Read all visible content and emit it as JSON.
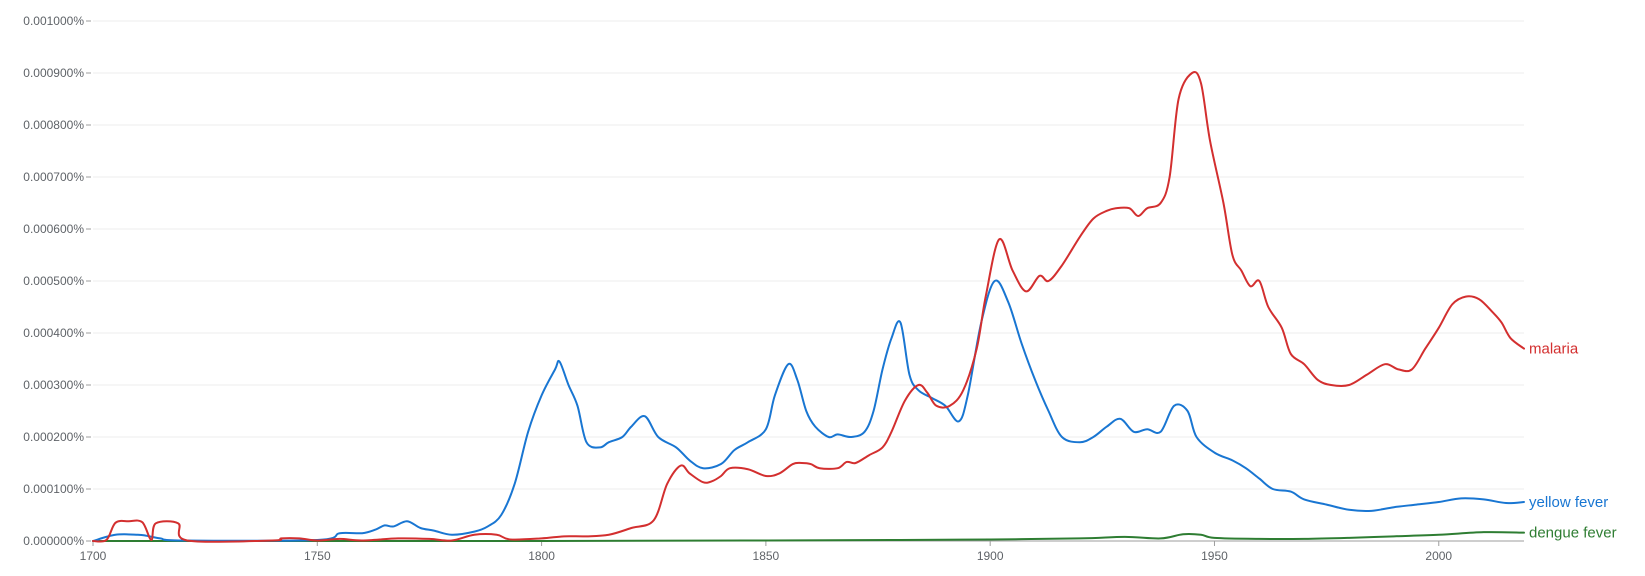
{
  "chart_data": {
    "type": "line",
    "title": "",
    "xlabel": "",
    "ylabel": "",
    "xlim": [
      1700,
      2019
    ],
    "ylim": [
      0,
      0.001
    ],
    "x_ticks": [
      1700,
      1750,
      1800,
      1850,
      1900,
      1950,
      2000
    ],
    "x_tick_labels": [
      "1700",
      "1750",
      "1800",
      "1850",
      "1900",
      "1950",
      "2000"
    ],
    "y_ticks": [
      0,
      0.0001,
      0.0002,
      0.0003,
      0.0004,
      0.0005,
      0.0006,
      0.0007,
      0.0008,
      0.0009,
      0.001
    ],
    "y_tick_labels": [
      "0.000000%",
      "0.000100%",
      "0.000200%",
      "0.000300%",
      "0.000400%",
      "0.000500%",
      "0.000600%",
      "0.000700%",
      "0.000800%",
      "0.000900%",
      "0.001000%"
    ],
    "grid": true,
    "legend": "inline-right",
    "series": [
      {
        "name": "malaria",
        "color": "#d32f2f",
        "points": [
          [
            1700,
            0
          ],
          [
            1703,
            2e-06
          ],
          [
            1705,
            3.5e-05
          ],
          [
            1708,
            3.8e-05
          ],
          [
            1711,
            3.6e-05
          ],
          [
            1713,
            2e-06
          ],
          [
            1714,
            3.4e-05
          ],
          [
            1719,
            3.4e-05
          ],
          [
            1721,
            1e-06
          ],
          [
            1740,
            1e-06
          ],
          [
            1742,
            5e-06
          ],
          [
            1746,
            5e-06
          ],
          [
            1750,
            1e-06
          ],
          [
            1755,
            4e-06
          ],
          [
            1760,
            1e-06
          ],
          [
            1768,
            5e-06
          ],
          [
            1775,
            4e-06
          ],
          [
            1780,
            1e-06
          ],
          [
            1785,
            1.2e-05
          ],
          [
            1790,
            1.2e-05
          ],
          [
            1793,
            3e-06
          ],
          [
            1800,
            5e-06
          ],
          [
            1805,
            9e-06
          ],
          [
            1810,
            9e-06
          ],
          [
            1815,
            1.2e-05
          ],
          [
            1820,
            2.5e-05
          ],
          [
            1825,
            4e-05
          ],
          [
            1828,
            0.00011
          ],
          [
            1831,
            0.000145
          ],
          [
            1833,
            0.00013
          ],
          [
            1836,
            0.000113
          ],
          [
            1838,
            0.000115
          ],
          [
            1840,
            0.000125
          ],
          [
            1842,
            0.00014
          ],
          [
            1846,
            0.000138
          ],
          [
            1850,
            0.000125
          ],
          [
            1853,
            0.00013
          ],
          [
            1856,
            0.000148
          ],
          [
            1858,
            0.00015
          ],
          [
            1860,
            0.000148
          ],
          [
            1862,
            0.00014
          ],
          [
            1866,
            0.00014
          ],
          [
            1868,
            0.000152
          ],
          [
            1870,
            0.00015
          ],
          [
            1873,
            0.000165
          ],
          [
            1876,
            0.00018
          ],
          [
            1878,
            0.00021
          ],
          [
            1881,
            0.00027
          ],
          [
            1884,
            0.0003
          ],
          [
            1886,
            0.000285
          ],
          [
            1888,
            0.00026
          ],
          [
            1891,
            0.00026
          ],
          [
            1894,
            0.00029
          ],
          [
            1897,
            0.00037
          ],
          [
            1899,
            0.00047
          ],
          [
            1902,
            0.00058
          ],
          [
            1905,
            0.00052
          ],
          [
            1908,
            0.00048
          ],
          [
            1911,
            0.00051
          ],
          [
            1913,
            0.0005
          ],
          [
            1916,
            0.00053
          ],
          [
            1920,
            0.000585
          ],
          [
            1923,
            0.00062
          ],
          [
            1926,
            0.000635
          ],
          [
            1928,
            0.00064
          ],
          [
            1931,
            0.00064
          ],
          [
            1933,
            0.000625
          ],
          [
            1935,
            0.00064
          ],
          [
            1938,
            0.00065
          ],
          [
            1940,
            0.0007
          ],
          [
            1942,
            0.00085
          ],
          [
            1945,
            0.0009
          ],
          [
            1947,
            0.00088
          ],
          [
            1949,
            0.00077
          ],
          [
            1952,
            0.00065
          ],
          [
            1954,
            0.00055
          ],
          [
            1956,
            0.00052
          ],
          [
            1958,
            0.00049
          ],
          [
            1960,
            0.0005
          ],
          [
            1962,
            0.00045
          ],
          [
            1965,
            0.00041
          ],
          [
            1967,
            0.00036
          ],
          [
            1970,
            0.00034
          ],
          [
            1973,
            0.00031
          ],
          [
            1976,
            0.0003
          ],
          [
            1980,
            0.0003
          ],
          [
            1984,
            0.00032
          ],
          [
            1988,
            0.00034
          ],
          [
            1991,
            0.00033
          ],
          [
            1994,
            0.00033
          ],
          [
            1997,
            0.00037
          ],
          [
            2000,
            0.00041
          ],
          [
            2003,
            0.000455
          ],
          [
            2006,
            0.00047
          ],
          [
            2009,
            0.000465
          ],
          [
            2012,
            0.00044
          ],
          [
            2014,
            0.00042
          ],
          [
            2016,
            0.00039
          ],
          [
            2019,
            0.00037
          ]
        ]
      },
      {
        "name": "yellow fever",
        "color": "#1976d2",
        "points": [
          [
            1700,
            0
          ],
          [
            1705,
            1.2e-05
          ],
          [
            1710,
            1.2e-05
          ],
          [
            1712,
            1e-05
          ],
          [
            1715,
            5e-06
          ],
          [
            1720,
            1e-06
          ],
          [
            1750,
            2e-06
          ],
          [
            1755,
            1.5e-05
          ],
          [
            1760,
            1.5e-05
          ],
          [
            1763,
            2.2e-05
          ],
          [
            1765,
            3e-05
          ],
          [
            1767,
            2.8e-05
          ],
          [
            1770,
            3.8e-05
          ],
          [
            1773,
            2.5e-05
          ],
          [
            1776,
            2e-05
          ],
          [
            1780,
            1.2e-05
          ],
          [
            1785,
            1.8e-05
          ],
          [
            1788,
            2.8e-05
          ],
          [
            1791,
            5e-05
          ],
          [
            1794,
            0.00011
          ],
          [
            1797,
            0.00021
          ],
          [
            1800,
            0.00028
          ],
          [
            1803,
            0.00033
          ],
          [
            1804,
            0.000345
          ],
          [
            1806,
            0.0003
          ],
          [
            1808,
            0.00026
          ],
          [
            1810,
            0.00019
          ],
          [
            1813,
            0.00018
          ],
          [
            1815,
            0.00019
          ],
          [
            1818,
            0.0002
          ],
          [
            1820,
            0.00022
          ],
          [
            1823,
            0.00024
          ],
          [
            1826,
            0.0002
          ],
          [
            1830,
            0.00018
          ],
          [
            1833,
            0.000155
          ],
          [
            1836,
            0.00014
          ],
          [
            1840,
            0.000148
          ],
          [
            1843,
            0.000175
          ],
          [
            1846,
            0.00019
          ],
          [
            1850,
            0.000215
          ],
          [
            1852,
            0.00028
          ],
          [
            1855,
            0.00034
          ],
          [
            1857,
            0.00031
          ],
          [
            1859,
            0.00025
          ],
          [
            1861,
            0.00022
          ],
          [
            1864,
            0.0002
          ],
          [
            1866,
            0.000205
          ],
          [
            1869,
            0.0002
          ],
          [
            1872,
            0.00021
          ],
          [
            1874,
            0.00025
          ],
          [
            1876,
            0.00033
          ],
          [
            1878,
            0.00039
          ],
          [
            1880,
            0.00042
          ],
          [
            1882,
            0.00032
          ],
          [
            1884,
            0.00029
          ],
          [
            1887,
            0.000275
          ],
          [
            1890,
            0.00026
          ],
          [
            1893,
            0.00023
          ],
          [
            1895,
            0.00028
          ],
          [
            1898,
            0.00042
          ],
          [
            1901,
            0.0005
          ],
          [
            1904,
            0.00046
          ],
          [
            1907,
            0.00038
          ],
          [
            1910,
            0.00031
          ],
          [
            1913,
            0.00025
          ],
          [
            1916,
            0.0002
          ],
          [
            1920,
            0.00019
          ],
          [
            1923,
            0.0002
          ],
          [
            1926,
            0.00022
          ],
          [
            1929,
            0.000235
          ],
          [
            1932,
            0.00021
          ],
          [
            1935,
            0.000215
          ],
          [
            1938,
            0.00021
          ],
          [
            1941,
            0.00026
          ],
          [
            1944,
            0.00025
          ],
          [
            1946,
            0.0002
          ],
          [
            1950,
            0.00017
          ],
          [
            1954,
            0.000155
          ],
          [
            1957,
            0.00014
          ],
          [
            1960,
            0.00012
          ],
          [
            1963,
            0.0001
          ],
          [
            1967,
            9.5e-05
          ],
          [
            1970,
            8e-05
          ],
          [
            1975,
            7e-05
          ],
          [
            1980,
            6e-05
          ],
          [
            1985,
            5.8e-05
          ],
          [
            1990,
            6.5e-05
          ],
          [
            1995,
            7e-05
          ],
          [
            2000,
            7.5e-05
          ],
          [
            2005,
            8.2e-05
          ],
          [
            2010,
            8e-05
          ],
          [
            2015,
            7.3e-05
          ],
          [
            2019,
            7.5e-05
          ]
        ]
      },
      {
        "name": "dengue fever",
        "color": "#2e7d32",
        "points": [
          [
            1700,
            0
          ],
          [
            1800,
            0
          ],
          [
            1850,
            1e-06
          ],
          [
            1880,
            2e-06
          ],
          [
            1900,
            3e-06
          ],
          [
            1920,
            5e-06
          ],
          [
            1930,
            8e-06
          ],
          [
            1938,
            5e-06
          ],
          [
            1943,
            1.3e-05
          ],
          [
            1947,
            1.2e-05
          ],
          [
            1950,
            6e-06
          ],
          [
            1960,
            4e-06
          ],
          [
            1970,
            4e-06
          ],
          [
            1980,
            6e-06
          ],
          [
            1990,
            9e-06
          ],
          [
            2000,
            1.2e-05
          ],
          [
            2010,
            1.7e-05
          ],
          [
            2019,
            1.6e-05
          ]
        ]
      }
    ]
  }
}
